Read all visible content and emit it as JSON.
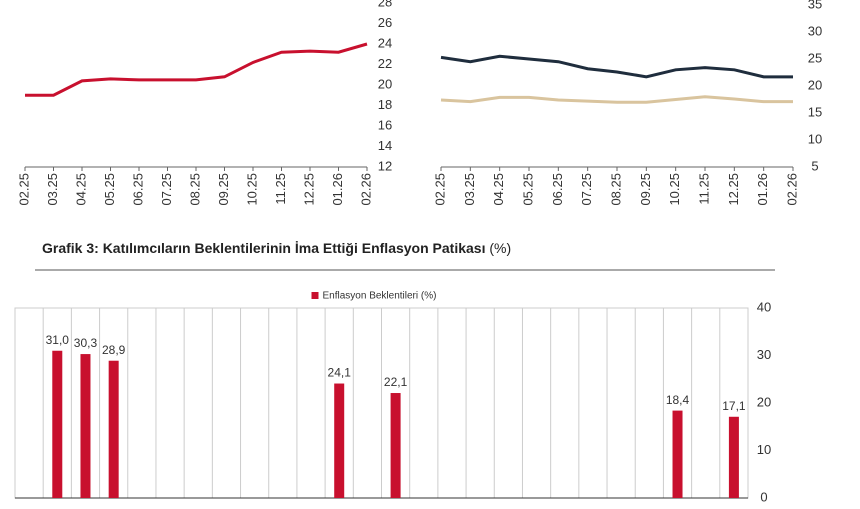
{
  "chart_data": [
    {
      "type": "line",
      "categories": [
        "02.25",
        "03.25",
        "04.25",
        "05.25",
        "06.25",
        "07.25",
        "08.25",
        "09.25",
        "10.25",
        "11.25",
        "12.25",
        "01.26",
        "02.26"
      ],
      "series": [
        {
          "color": "#c8102e",
          "values": [
            19,
            19,
            20.4,
            20.6,
            20.5,
            20.5,
            20.5,
            20.8,
            22.2,
            23.2,
            23.3,
            23.2,
            24
          ]
        }
      ],
      "ylim": [
        12,
        28
      ],
      "yticks": [
        12,
        14,
        16,
        18,
        20,
        22,
        24,
        26,
        28
      ]
    },
    {
      "type": "line",
      "categories": [
        "02.25",
        "03.25",
        "04.25",
        "05.25",
        "06.25",
        "07.25",
        "08.25",
        "09.25",
        "10.25",
        "11.25",
        "12.25",
        "01.26",
        "02.26"
      ],
      "series": [
        {
          "color": "#1f2d3d",
          "values": [
            25.3,
            24.5,
            25.5,
            25,
            24.5,
            23.2,
            22.6,
            21.7,
            23,
            23.4,
            23,
            21.7,
            21.7
          ]
        },
        {
          "color": "#d9c49e",
          "values": [
            17.4,
            17.1,
            17.9,
            17.9,
            17.4,
            17.2,
            17,
            17,
            17.5,
            18,
            17.6,
            17.1,
            17.1
          ]
        }
      ],
      "ylim": [
        5,
        35
      ],
      "yticks": [
        5,
        10,
        15,
        20,
        25,
        30,
        35
      ]
    },
    {
      "type": "bar",
      "title": "Grafik 3: Katılımcıların Beklentilerinin İma Ettiği Enflasyon Patikası",
      "title_unit": "(%)",
      "categories": [
        null,
        null,
        null,
        null,
        null,
        null,
        null,
        null,
        null,
        null,
        null,
        null,
        null,
        null,
        null,
        null,
        null,
        null,
        null,
        null,
        null,
        null,
        null,
        null,
        null,
        null
      ],
      "series": [
        {
          "name": "Enflasyon Beklentileri (%)",
          "color": "#c8102e",
          "values": [
            null,
            31.0,
            30.3,
            28.9,
            null,
            null,
            null,
            null,
            null,
            null,
            null,
            24.1,
            null,
            22.1,
            null,
            null,
            null,
            null,
            null,
            null,
            null,
            null,
            null,
            18.4,
            null,
            17.1
          ],
          "value_labels": [
            null,
            "31,0",
            "30,3",
            "28,9",
            null,
            null,
            null,
            null,
            null,
            null,
            null,
            "24,1",
            null,
            "22,1",
            null,
            null,
            null,
            null,
            null,
            null,
            null,
            null,
            null,
            "18,4",
            null,
            "17,1"
          ]
        }
      ],
      "ylim": [
        0,
        40
      ],
      "yticks": [
        0,
        10,
        20,
        30,
        40
      ],
      "grid": true
    }
  ]
}
